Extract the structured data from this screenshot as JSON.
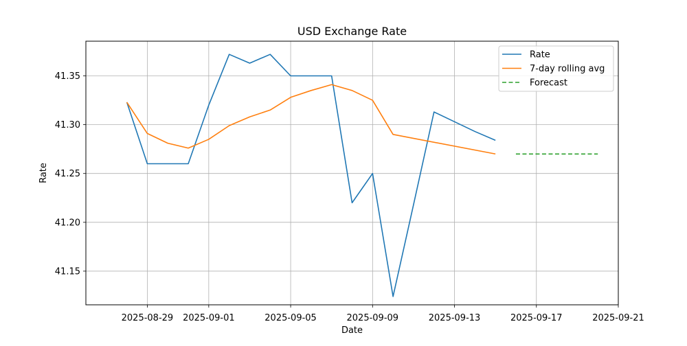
{
  "chart_data": {
    "type": "line",
    "title": "USD Exchange Rate",
    "xlabel": "Date",
    "ylabel": "Rate",
    "grid": true,
    "legend_position": "top-right",
    "xlim": [
      "2025-08-26",
      "2025-09-21"
    ],
    "ylim": [
      41.1155,
      41.3855
    ],
    "x_ticks": [
      "2025-08-29",
      "2025-09-01",
      "2025-09-05",
      "2025-09-09",
      "2025-09-13",
      "2025-09-17",
      "2025-09-21"
    ],
    "y_ticks": [
      "41.15",
      "41.20",
      "41.25",
      "41.30",
      "41.35"
    ],
    "series": [
      {
        "name": "Rate",
        "color": "#1f77b4",
        "style": "solid",
        "x": [
          "2025-08-28",
          "2025-08-29",
          "2025-08-30",
          "2025-08-31",
          "2025-09-01",
          "2025-09-02",
          "2025-09-03",
          "2025-09-04",
          "2025-09-05",
          "2025-09-06",
          "2025-09-07",
          "2025-09-08",
          "2025-09-09",
          "2025-09-10",
          "2025-09-11",
          "2025-09-12",
          "2025-09-13",
          "2025-09-14",
          "2025-09-15"
        ],
        "values": [
          41.323,
          41.26,
          41.26,
          41.26,
          41.32,
          41.372,
          41.363,
          41.372,
          41.35,
          41.35,
          41.35,
          41.22,
          41.25,
          41.124,
          41.218,
          41.313,
          41.303,
          41.293,
          41.284
        ]
      },
      {
        "name": "7-day rolling avg",
        "color": "#ff7f0e",
        "style": "solid",
        "x": [
          "2025-08-28",
          "2025-08-29",
          "2025-08-30",
          "2025-08-31",
          "2025-09-01",
          "2025-09-02",
          "2025-09-03",
          "2025-09-04",
          "2025-09-05",
          "2025-09-06",
          "2025-09-07",
          "2025-09-08",
          "2025-09-09",
          "2025-09-10",
          "2025-09-15"
        ],
        "values": [
          41.323,
          41.291,
          41.281,
          41.276,
          41.285,
          41.299,
          41.308,
          41.315,
          41.328,
          41.335,
          41.341,
          41.335,
          41.325,
          41.29,
          41.27
        ]
      },
      {
        "name": "Forecast",
        "color": "#2ca02c",
        "style": "dashed",
        "x": [
          "2025-09-16",
          "2025-09-17",
          "2025-09-18",
          "2025-09-19",
          "2025-09-20"
        ],
        "values": [
          41.27,
          41.27,
          41.27,
          41.27,
          41.27
        ]
      }
    ]
  }
}
